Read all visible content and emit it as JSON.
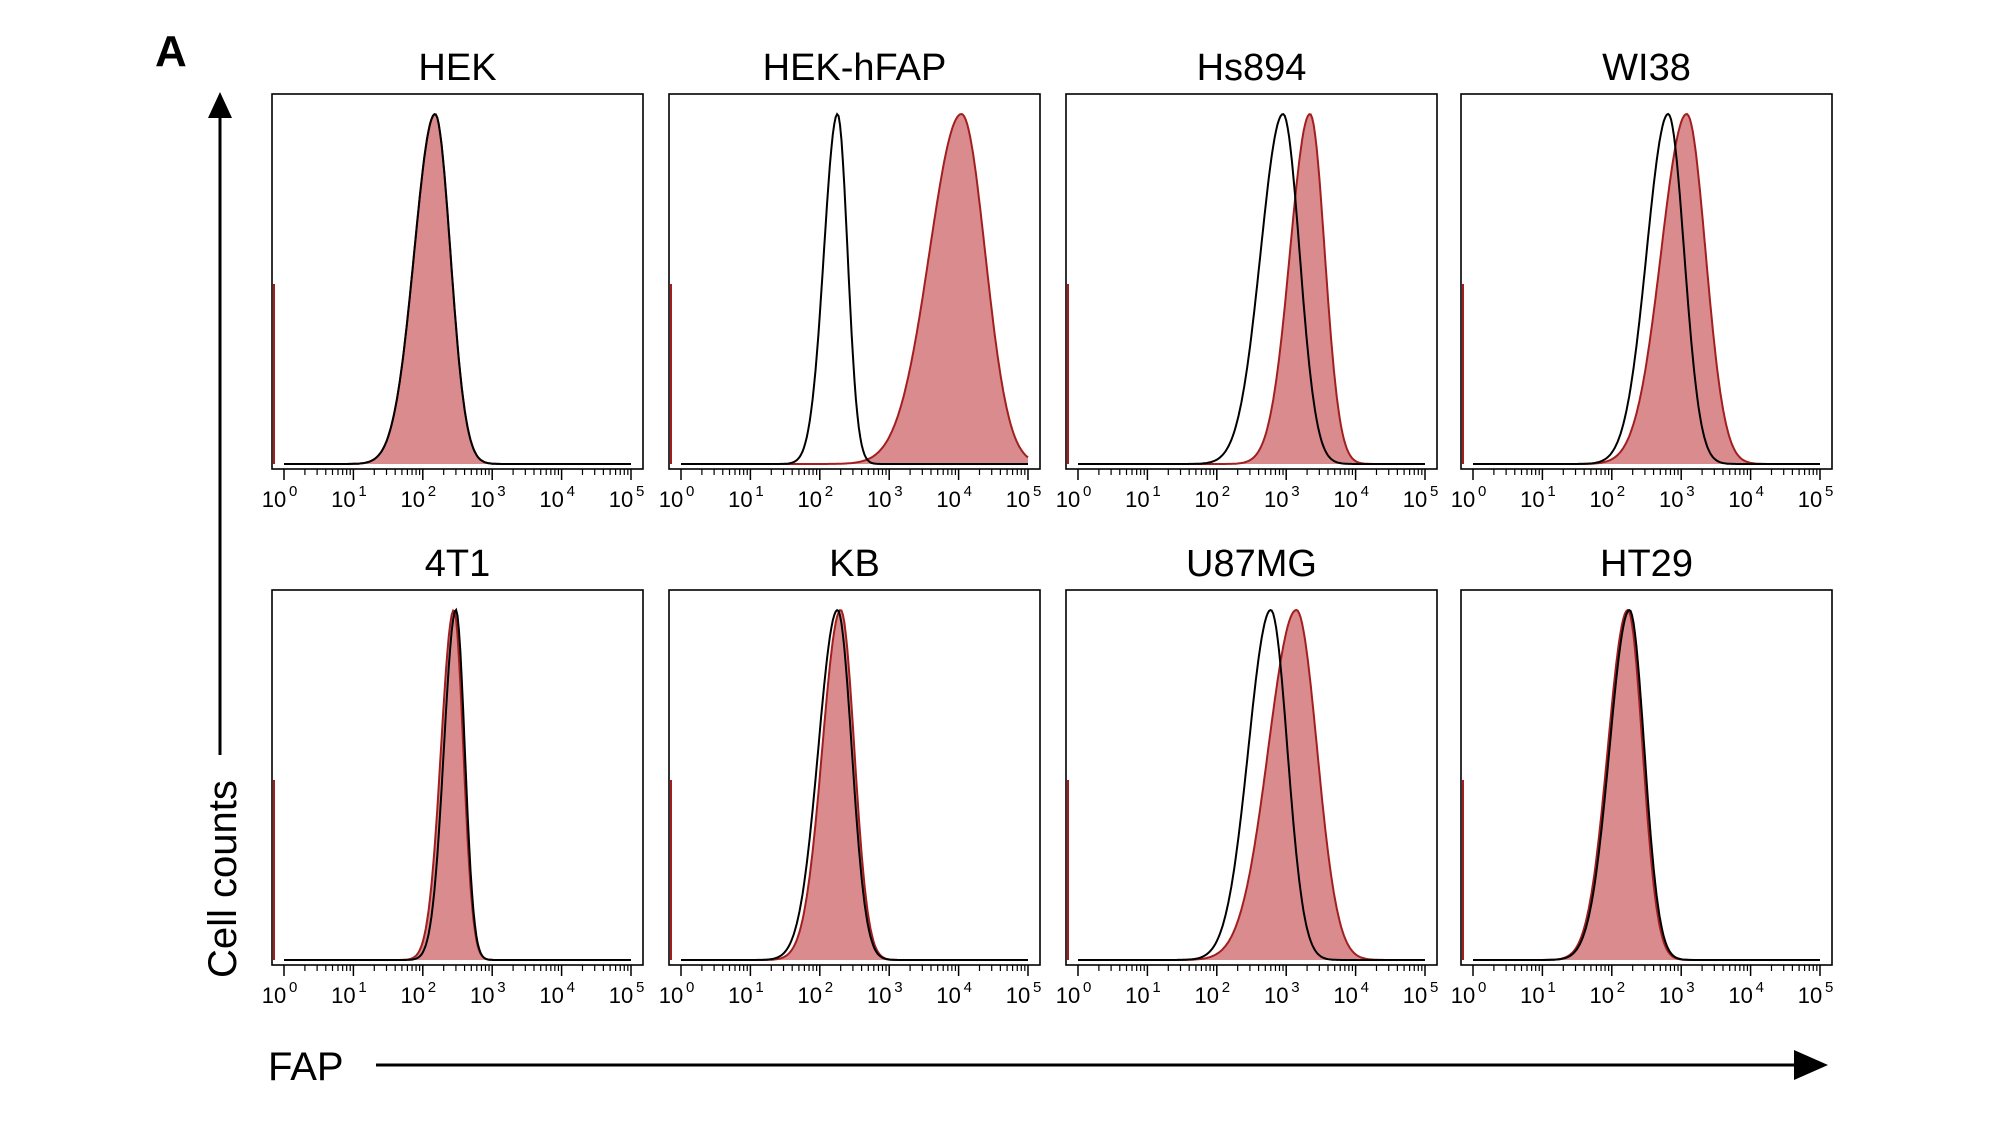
{
  "figure": {
    "panel_letter": "A",
    "y_axis_label": "Cell counts",
    "x_axis_label": "FAP"
  },
  "chart_data": {
    "type": "area",
    "x_scale": "log",
    "xlim": [
      1,
      100000
    ],
    "x_tick_labels": [
      "10",
      "10",
      "10",
      "10",
      "10",
      "10"
    ],
    "x_tick_exponents": [
      "0",
      "1",
      "2",
      "3",
      "4",
      "5"
    ],
    "y_tick_labels": [],
    "grid": false,
    "colors": {
      "stained_fill": "#d98b8e",
      "stained_line": "#a31f1f",
      "control_line": "#000000"
    },
    "panels": [
      {
        "title": "HEK",
        "control_peak": 150,
        "control_width": 0.26,
        "stained_peak": 150,
        "stained_width": 0.26
      },
      {
        "title": "HEK-hFAP",
        "control_peak": 180,
        "control_width": 0.17,
        "stained_peak": 11000,
        "stained_width": 0.4
      },
      {
        "title": "Hs894",
        "control_peak": 900,
        "control_width": 0.28,
        "stained_peak": 2200,
        "stained_width": 0.25
      },
      {
        "title": "WI38",
        "control_peak": 650,
        "control_width": 0.27,
        "stained_peak": 1200,
        "stained_width": 0.32
      },
      {
        "title": "4T1",
        "control_peak": 300,
        "control_width": 0.15,
        "stained_peak": 280,
        "stained_width": 0.16
      },
      {
        "title": "KB",
        "control_peak": 180,
        "control_width": 0.24,
        "stained_peak": 200,
        "stained_width": 0.23
      },
      {
        "title": "U87MG",
        "control_peak": 600,
        "control_width": 0.28,
        "stained_peak": 1400,
        "stained_width": 0.35
      },
      {
        "title": "HT29",
        "control_peak": 180,
        "control_width": 0.25,
        "stained_peak": 170,
        "stained_width": 0.25
      }
    ]
  }
}
